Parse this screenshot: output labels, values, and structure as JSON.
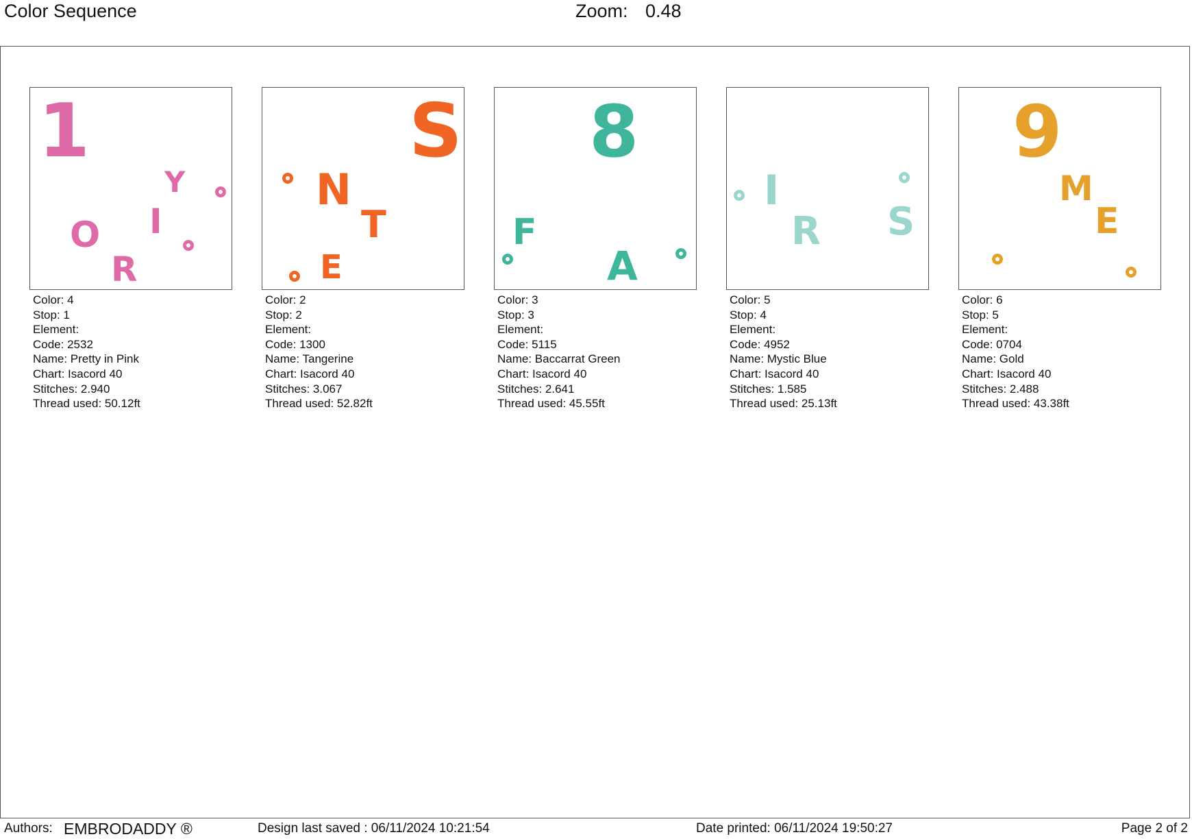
{
  "header": {
    "title": "Color Sequence",
    "zoom_label": "Zoom:",
    "zoom_value": "0.48"
  },
  "cards": [
    {
      "color": "#DE6BA8",
      "glyphs": {
        "big": "1",
        "a": "Y",
        "b": "I",
        "c": "O",
        "d": "R"
      },
      "lines": {
        "color": "Color: 4",
        "stop": "Stop: 1",
        "element": "Element:",
        "code": "Code: 2532",
        "name": "Name: Pretty in Pink",
        "chart": "Chart: Isacord 40",
        "stitches": "Stitches: 2.940",
        "thread": "Thread used: 50.12ft"
      }
    },
    {
      "color": "#F06424",
      "glyphs": {
        "big": "S",
        "a": "N",
        "b": "T",
        "c": "E"
      },
      "lines": {
        "color": "Color: 2",
        "stop": "Stop: 2",
        "element": "Element:",
        "code": "Code: 1300",
        "name": "Name: Tangerine",
        "chart": "Chart: Isacord 40",
        "stitches": "Stitches: 3.067",
        "thread": "Thread used: 52.82ft"
      }
    },
    {
      "color": "#3FB59C",
      "glyphs": {
        "big": "8",
        "a": "F",
        "b": "A"
      },
      "lines": {
        "color": "Color: 3",
        "stop": "Stop: 3",
        "element": "Element:",
        "code": "Code: 5115",
        "name": "Name: Baccarrat Green",
        "chart": "Chart: Isacord 40",
        "stitches": "Stitches: 2.641",
        "thread": "Thread used: 45.55ft"
      }
    },
    {
      "color": "#9AD6CC",
      "glyphs": {
        "a": "I",
        "b": "R",
        "c": "S"
      },
      "lines": {
        "color": "Color: 5",
        "stop": "Stop: 4",
        "element": "Element:",
        "code": "Code: 4952",
        "name": "Name: Mystic Blue",
        "chart": "Chart: Isacord 40",
        "stitches": "Stitches: 1.585",
        "thread": "Thread used: 25.13ft"
      }
    },
    {
      "color": "#E6A12C",
      "glyphs": {
        "big": "9",
        "a": "M",
        "b": "E"
      },
      "lines": {
        "color": "Color: 6",
        "stop": "Stop: 5",
        "element": "Element:",
        "code": "Code: 0704",
        "name": "Name: Gold",
        "chart": "Chart: Isacord 40",
        "stitches": "Stitches: 2.488",
        "thread": "Thread used: 43.38ft"
      }
    }
  ],
  "footer": {
    "authors_label": "Authors:",
    "authors_value": "EMBRODADDY ®",
    "saved": "Design last saved : 06/11/2024 10:21:54",
    "printed": "Date printed: 06/11/2024 19:50:27",
    "page": "Page 2 of 2"
  }
}
